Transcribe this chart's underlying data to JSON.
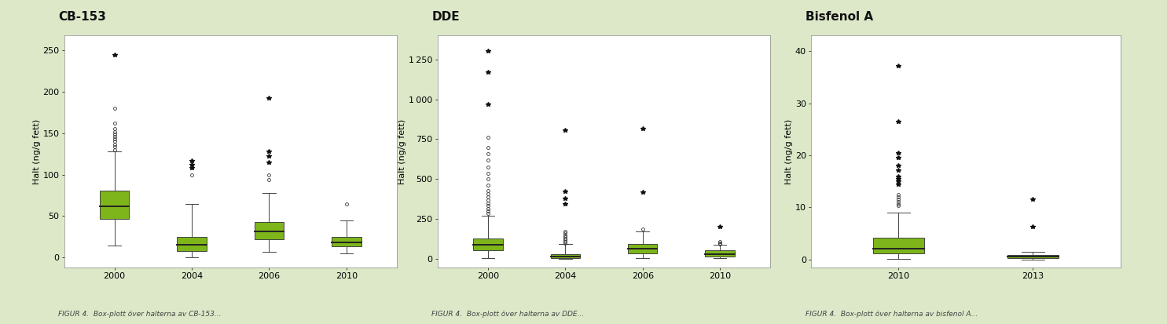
{
  "background_color": "#dce8c8",
  "plot_bg_color": "#ffffff",
  "box_facecolor": "#7db51a",
  "box_edgecolor": "#444444",
  "median_color": "#222222",
  "whisker_color": "#444444",
  "flier_open_color": "#333333",
  "flier_star_color": "#111111",
  "panels": [
    {
      "title": "CB-153",
      "ylabel": "Halt (ng/g fett)",
      "categories": [
        "2000",
        "2004",
        "2006",
        "2010"
      ],
      "ylim": [
        -12,
        268
      ],
      "yticks": [
        0,
        50,
        100,
        150,
        200,
        250
      ],
      "boxes": [
        {
          "q1": 47,
          "median": 62,
          "q3": 81,
          "whislo": 14,
          "whishi": 128,
          "fliers_open": [
            130,
            134,
            137,
            140,
            143,
            146,
            149,
            152,
            156,
            162,
            180
          ],
          "fliers_star": [
            245
          ]
        },
        {
          "q1": 8,
          "median": 15,
          "q3": 25,
          "whislo": 0,
          "whishi": 65,
          "fliers_open": [
            100
          ],
          "fliers_star": [
            108,
            112,
            117
          ]
        },
        {
          "q1": 22,
          "median": 31,
          "q3": 43,
          "whislo": 7,
          "whishi": 78,
          "fliers_open": [
            94,
            100
          ],
          "fliers_star": [
            115,
            122,
            128,
            193
          ]
        },
        {
          "q1": 13,
          "median": 18,
          "q3": 25,
          "whislo": 5,
          "whishi": 45,
          "fliers_open": [
            65
          ],
          "fliers_star": []
        }
      ],
      "caption": "FIGUR 4.  Box-plott över halterna av CB-153..."
    },
    {
      "title": "DDE",
      "ylabel": "Halt (ng/g fett)",
      "categories": [
        "2000",
        "2004",
        "2006",
        "2010"
      ],
      "ylim": [
        -55,
        1400
      ],
      "yticks": [
        0,
        250,
        500,
        750,
        1000,
        1250
      ],
      "boxes": [
        {
          "q1": 52,
          "median": 88,
          "q3": 128,
          "whislo": 4,
          "whishi": 268,
          "fliers_open": [
            282,
            298,
            315,
            332,
            350,
            368,
            386,
            405,
            428,
            462,
            498,
            535,
            575,
            618,
            658,
            698,
            760
          ],
          "fliers_star": [
            968,
            1172,
            1302
          ]
        },
        {
          "q1": 5,
          "median": 14,
          "q3": 27,
          "whislo": 0,
          "whishi": 92,
          "fliers_open": [
            98,
            108,
            118,
            128,
            138,
            148,
            158,
            168
          ],
          "fliers_star": [
            345,
            378,
            420,
            808
          ]
        },
        {
          "q1": 32,
          "median": 62,
          "q3": 92,
          "whislo": 3,
          "whishi": 168,
          "fliers_open": [
            183
          ],
          "fliers_star": [
            415,
            815
          ]
        },
        {
          "q1": 14,
          "median": 28,
          "q3": 52,
          "whislo": 2,
          "whishi": 88,
          "fliers_open": [
            93,
            98,
            104
          ],
          "fliers_star": [
            198
          ]
        }
      ],
      "caption": "FIGUR 4.  Box-plott över halterna av DDE..."
    },
    {
      "title": "Bisfenol A",
      "ylabel": "Halt (ng/g fett)",
      "categories": [
        "2010",
        "2013"
      ],
      "ylim": [
        -1.5,
        43
      ],
      "yticks": [
        0,
        10,
        20,
        30,
        40
      ],
      "boxes": [
        {
          "q1": 1.2,
          "median": 2.1,
          "q3": 4.2,
          "whislo": 0.1,
          "whishi": 9.0,
          "fliers_open": [
            10.3,
            10.7,
            11.1,
            11.5,
            12.0,
            12.5
          ],
          "fliers_star": [
            14.5,
            15.0,
            15.5,
            16.0,
            17.2,
            18.0,
            19.5,
            20.5,
            26.5,
            37.2
          ]
        },
        {
          "q1": 0.25,
          "median": 0.55,
          "q3": 0.85,
          "whislo": 0.02,
          "whishi": 1.4,
          "fliers_open": [],
          "fliers_star": [
            6.3,
            11.5
          ]
        }
      ],
      "caption": "FIGUR 4.  Box-plott över halterna av bisfenol A..."
    }
  ],
  "title_fontsize": 11,
  "label_fontsize": 8,
  "tick_fontsize": 8,
  "caption_fontsize": 6.5
}
